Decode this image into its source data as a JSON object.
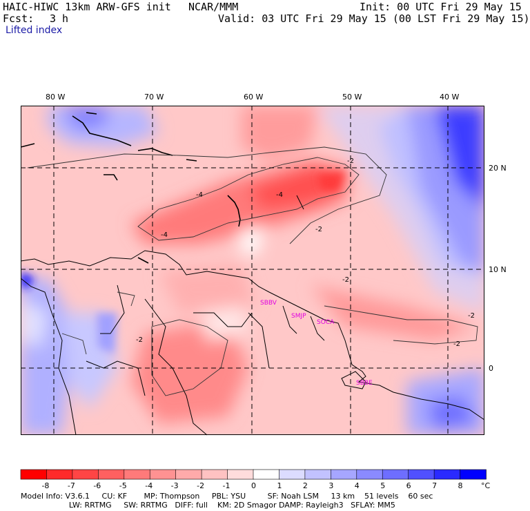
{
  "header": {
    "model": "HAIC-HIWC 13km ARW-GFS init",
    "org": "NCAR/MMM",
    "init": "Init: 00 UTC Fri 29 May 15",
    "fcst_label": "Fcst:",
    "fcst_value": "3 h",
    "valid": "Valid: 03 UTC Fri 29 May 15 (00 LST Fri 29 May 15)",
    "field": "Lifted index"
  },
  "map": {
    "lon_labels": [
      "80 W",
      "70 W",
      "60 W",
      "50 W",
      "40 W"
    ],
    "lat_labels": [
      "20 N",
      "10 N",
      "0"
    ],
    "contour_labels": [
      "-4",
      "-4",
      "-4",
      "-2",
      "-2",
      "-2",
      "-2",
      "-2",
      "-2"
    ],
    "stations": [
      "SBBV",
      "SMJP",
      "SOCA",
      "SBBE"
    ],
    "station_color": "#e000e0",
    "grid_style": "dashed",
    "palette_warm": "#ff0000",
    "palette_cold": "#0000ff"
  },
  "colorbar": {
    "ticks": [
      "-8",
      "-7",
      "-6",
      "-5",
      "-4",
      "-3",
      "-2",
      "-1",
      "0",
      "1",
      "2",
      "3",
      "4",
      "5",
      "6",
      "7",
      "8"
    ],
    "unit": "°C",
    "colors": [
      "#ff0000",
      "#ff2a2a",
      "#ff4545",
      "#ff6060",
      "#ff7a7a",
      "#ff9292",
      "#ffaaaa",
      "#ffc2c2",
      "#ffdcdc",
      "#ffffff",
      "#dcdcff",
      "#c2c2ff",
      "#a6a6ff",
      "#8a8aff",
      "#6e6eff",
      "#5050ff",
      "#2a2aff",
      "#0000ff"
    ]
  },
  "footer": {
    "line1": "Model Info: V3.6.1     CU: KF       MP: Thompson     PBL: YSU         SF: Noah LSM     13 km    51 levels    60 sec",
    "line2": "                    LW: RRTMG     SW: RRTMG   DIFF: full    KM: 2D Smagor DAMP: Rayleigh3   SFLAY: MM5"
  }
}
